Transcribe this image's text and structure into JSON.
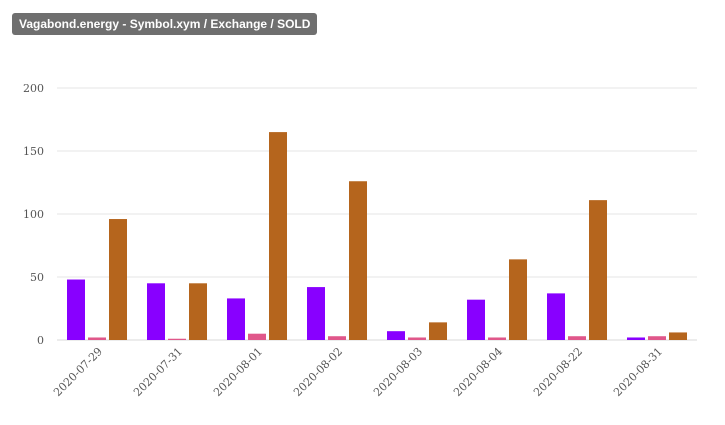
{
  "header": {
    "title": "Vagabond.energy - Symbol.xym / Exchange / SOLD"
  },
  "chart_data": {
    "type": "bar",
    "categories": [
      "2020-07-29",
      "2020-07-31",
      "2020-08-01",
      "2020-08-02",
      "2020-08-03",
      "2020-08-04",
      "2020-08-22",
      "2020-08-31"
    ],
    "series": [
      {
        "values": [
          48,
          45,
          33,
          42,
          7,
          32,
          37,
          2
        ],
        "color": "#8800ff"
      },
      {
        "values": [
          2,
          1,
          5,
          3,
          2,
          2,
          3,
          3
        ],
        "color": "#e0578a"
      },
      {
        "values": [
          96,
          45,
          165,
          126,
          14,
          64,
          111,
          6
        ],
        "color": "#b5651d"
      }
    ],
    "yticks": [
      0,
      50,
      100,
      150,
      200
    ],
    "ylim": [
      0,
      200
    ],
    "grid": true,
    "legend": "none"
  }
}
